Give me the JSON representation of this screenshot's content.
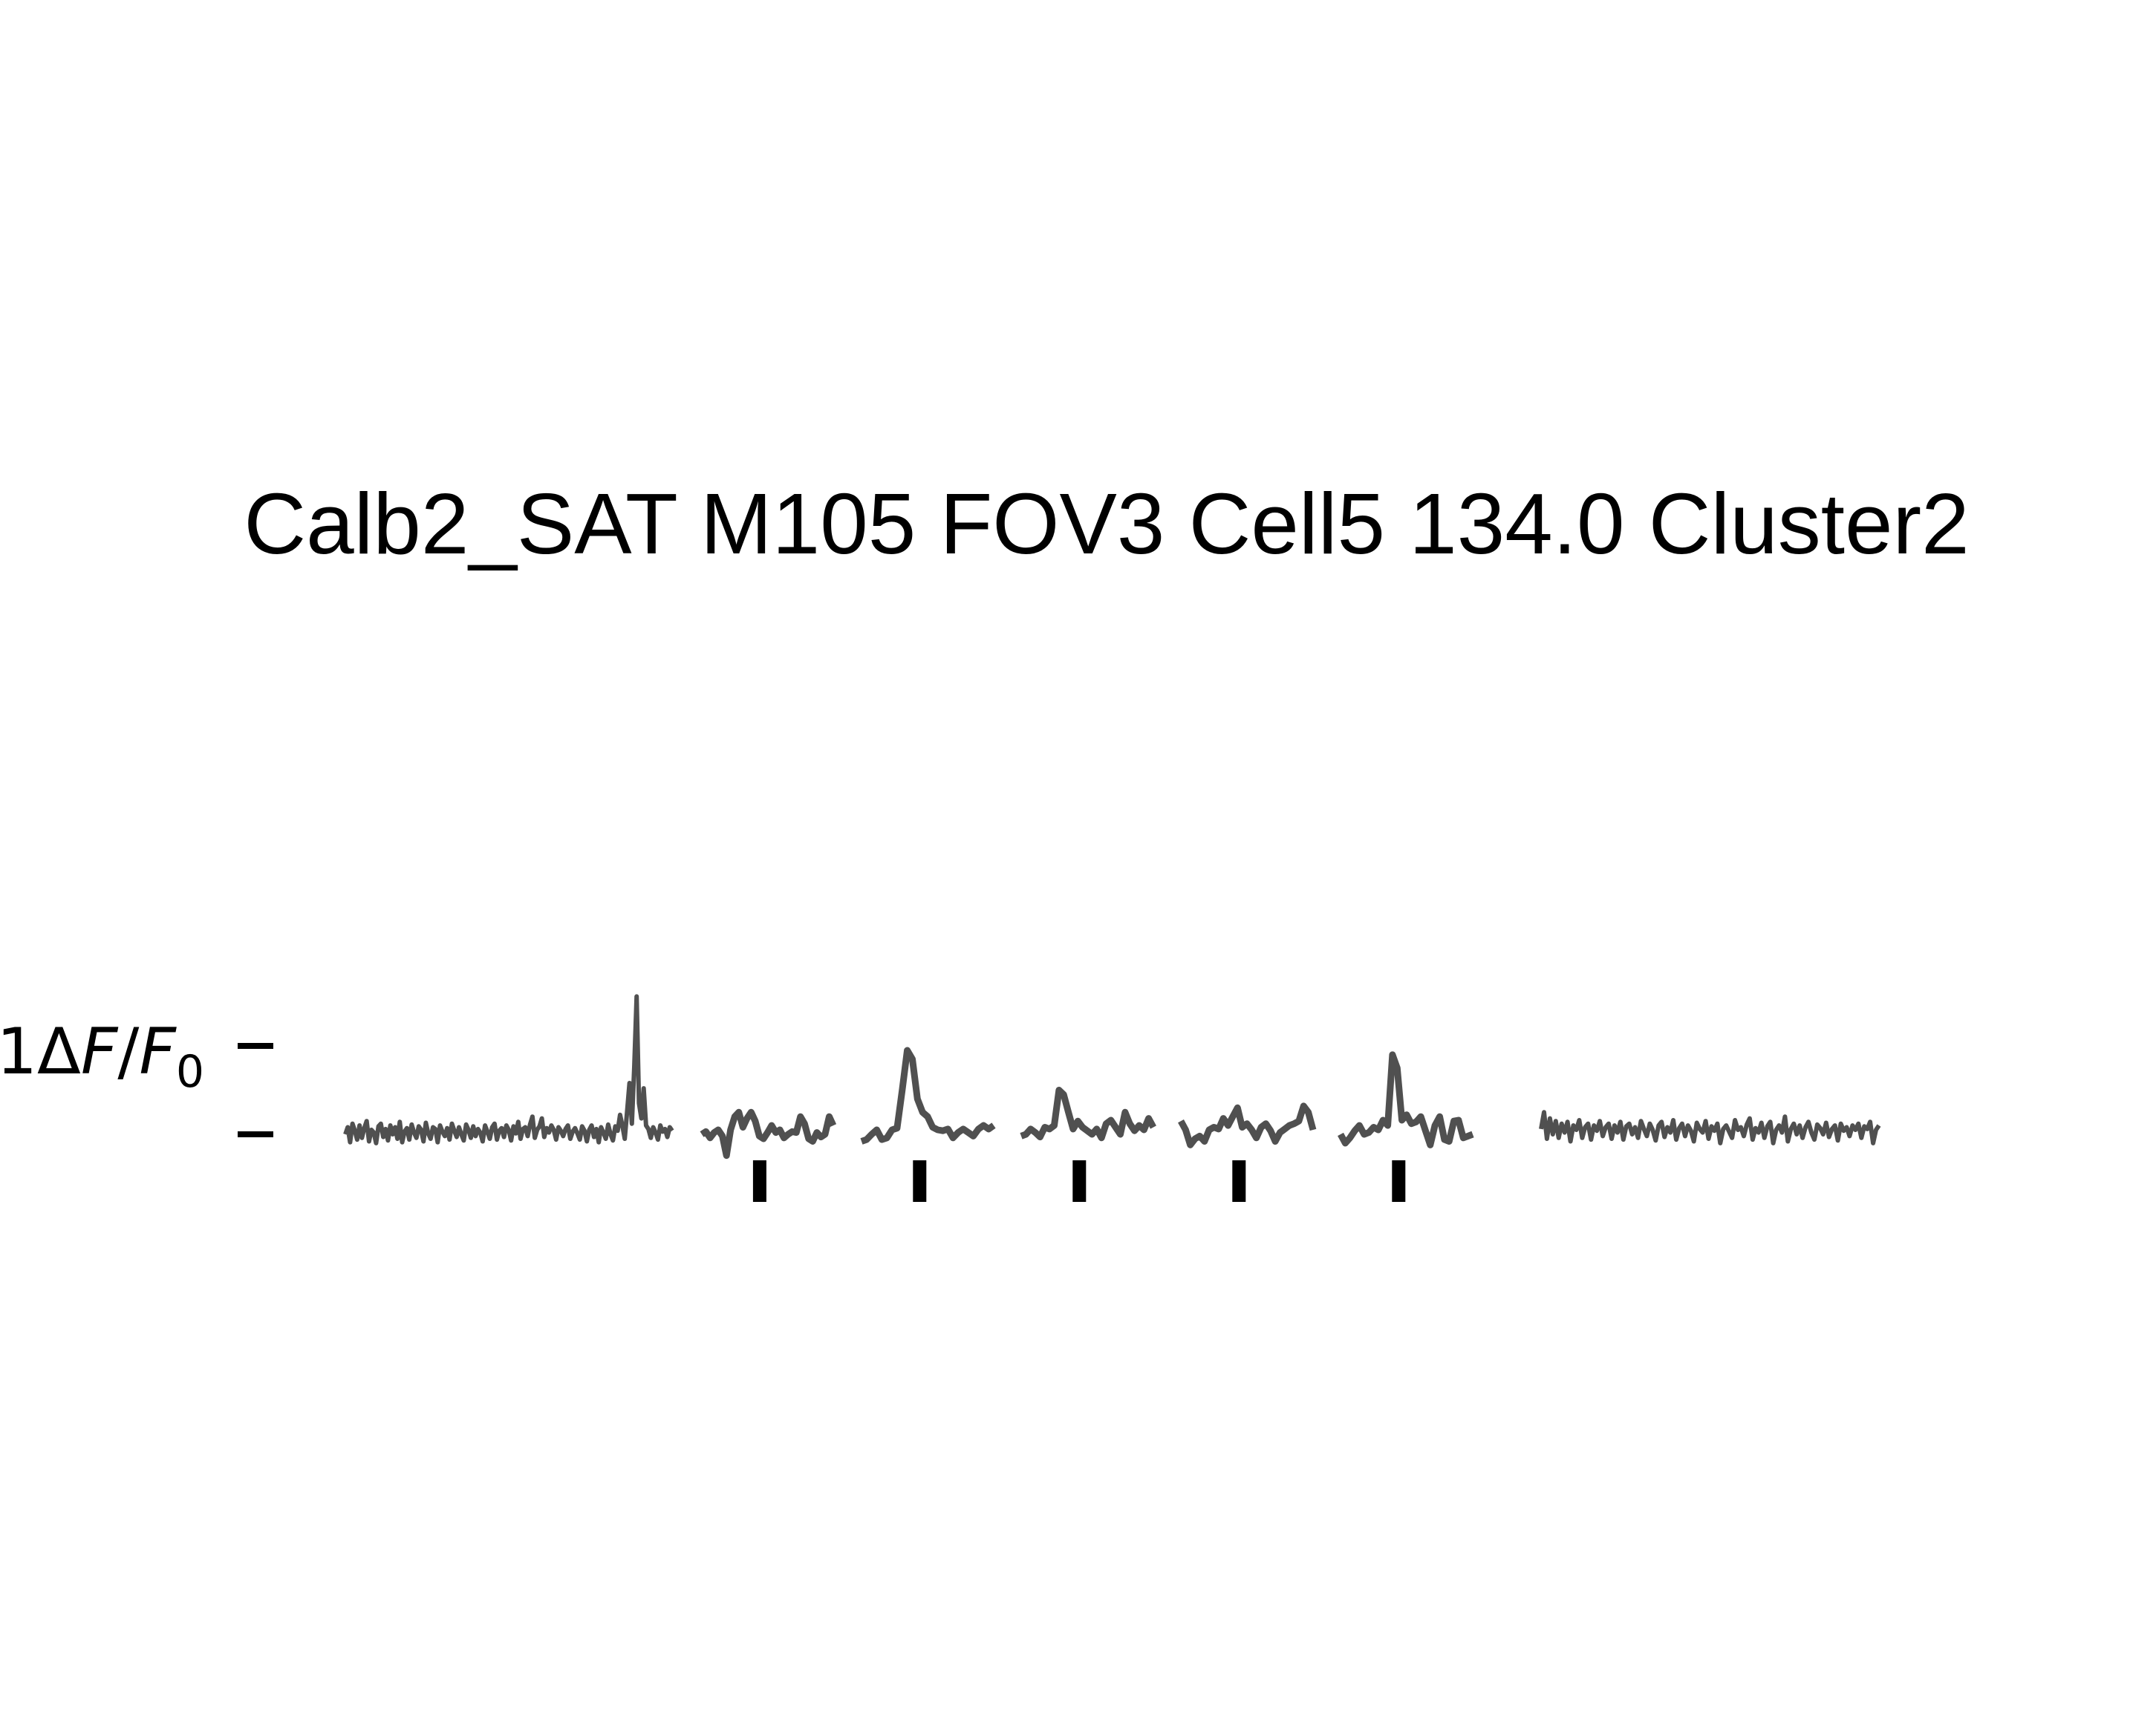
{
  "chart_data": {
    "type": "line",
    "title": "Calb2_SAT M105 FOV3 Cell5 134.0 Cluster2",
    "xlabel": "",
    "ylabel": "",
    "grid": false,
    "legend": "none",
    "trace_color": "#505050",
    "marker_color": "#000000",
    "scale_bar": {
      "label_prefix": "1",
      "label_delta": "Δ",
      "label_f": "F",
      "label_slash": "/",
      "label_f0": "F",
      "label_sub": "0",
      "value": 1
    },
    "segments": [
      {
        "name": "baseline-pre",
        "values": [
          0.0,
          0.08,
          -0.09,
          0.12,
          0.04,
          -0.06,
          0.1,
          -0.04,
          0.07,
          0.15,
          -0.08,
          0.05,
          0.02,
          -0.1,
          0.09,
          0.12,
          -0.03,
          0.06,
          -0.07,
          0.1,
          0.0,
          0.08,
          -0.05,
          0.14,
          -0.09,
          0.03,
          0.07,
          -0.06,
          0.11,
          0.02,
          -0.04,
          0.09,
          0.05,
          -0.08,
          0.13,
          0.01,
          -0.05,
          0.08,
          0.06,
          -0.09,
          0.1,
          0.03,
          -0.02,
          0.07,
          -0.06,
          0.12,
          0.04,
          -0.03,
          0.08,
          0.0,
          -0.07,
          0.11,
          0.05,
          -0.04,
          0.09,
          -0.02,
          0.06,
          0.02,
          -0.08,
          0.1,
          0.03,
          -0.05,
          0.08,
          0.12,
          -0.06,
          0.04,
          0.07,
          -0.03,
          0.1,
          0.05,
          -0.07,
          0.09,
          0.01,
          0.14,
          -0.05,
          0.06,
          0.08,
          -0.02,
          0.11,
          0.2,
          -0.04,
          0.05,
          0.09,
          0.18,
          -0.03,
          0.07,
          0.02,
          0.1,
          0.05,
          -0.06,
          0.08,
          0.04,
          -0.02,
          0.06,
          0.1,
          -0.05,
          0.03,
          0.07,
          0.01,
          -0.06,
          0.09,
          0.04,
          -0.08,
          0.05,
          0.1,
          -0.03,
          0.06,
          -0.09,
          0.08,
          0.02,
          -0.05,
          0.11,
          0.0,
          -0.07,
          0.09,
          0.04,
          0.22,
          0.1,
          -0.05,
          0.26,
          0.58,
          0.12,
          0.76,
          1.56,
          0.35,
          0.18,
          0.52,
          0.1,
          0.06,
          -0.04,
          0.08,
          0.02,
          -0.06,
          0.1,
          0.03,
          0.06,
          -0.03,
          0.08,
          0.04
        ]
      },
      {
        "name": "stim-1",
        "values": [
          0.0,
          0.03,
          -0.04,
          0.02,
          0.05,
          -0.02,
          -0.24,
          0.05,
          0.2,
          0.25,
          0.08,
          0.18,
          0.25,
          0.15,
          -0.02,
          -0.05,
          0.02,
          0.1,
          0.02,
          0.05,
          -0.04,
          0.0,
          0.03,
          0.02,
          0.2,
          0.12,
          -0.05,
          -0.08,
          0.02,
          -0.03,
          0.0,
          0.2,
          0.1
        ]
      },
      {
        "name": "stim-2",
        "values": [
          -0.08,
          -0.06,
          0.0,
          0.05,
          -0.06,
          -0.04,
          0.05,
          0.07,
          0.5,
          0.95,
          0.85,
          0.4,
          0.25,
          0.2,
          0.08,
          0.05,
          0.04,
          0.06,
          -0.04,
          0.02,
          0.06,
          0.02,
          -0.02,
          0.06,
          0.1,
          0.06,
          0.1
        ]
      },
      {
        "name": "stim-3",
        "values": [
          -0.02,
          0.0,
          0.06,
          0.02,
          -0.03,
          0.08,
          0.06,
          0.1,
          0.5,
          0.45,
          0.25,
          0.06,
          0.15,
          0.08,
          0.04,
          0.0,
          0.06,
          -0.04,
          0.12,
          0.16,
          0.08,
          0.0,
          0.25,
          0.12,
          0.04,
          0.1,
          0.05,
          0.18,
          0.08
        ]
      },
      {
        "name": "stim-4",
        "values": [
          0.15,
          0.05,
          -0.12,
          -0.05,
          -0.02,
          -0.08,
          0.05,
          0.08,
          0.06,
          0.18,
          0.1,
          0.2,
          0.3,
          0.08,
          0.12,
          0.05,
          -0.04,
          0.08,
          0.12,
          0.04,
          -0.08,
          0.02,
          0.06,
          0.1,
          0.12,
          0.15,
          0.32,
          0.25,
          0.05
        ]
      },
      {
        "name": "stim-5",
        "values": [
          0.0,
          -0.1,
          -0.04,
          0.04,
          0.1,
          0.0,
          0.02,
          0.08,
          0.05,
          0.16,
          0.1,
          0.9,
          0.75,
          0.16,
          0.22,
          0.12,
          0.14,
          0.2,
          0.04,
          -0.12,
          0.1,
          0.2,
          -0.06,
          -0.08,
          0.15,
          0.16,
          -0.04,
          -0.02,
          0.0
        ]
      },
      {
        "name": "baseline-post",
        "values": [
          0.06,
          0.25,
          -0.05,
          0.18,
          0.0,
          0.15,
          -0.04,
          0.12,
          0.02,
          0.14,
          -0.08,
          0.1,
          0.05,
          0.16,
          -0.04,
          0.08,
          0.12,
          -0.06,
          0.1,
          0.04,
          0.15,
          -0.02,
          0.08,
          0.12,
          -0.05,
          0.1,
          0.02,
          0.14,
          -0.06,
          0.09,
          0.12,
          0.0,
          0.08,
          -0.04,
          0.15,
          0.06,
          -0.02,
          0.12,
          0.05,
          -0.07,
          0.1,
          0.14,
          -0.03,
          0.08,
          0.02,
          0.16,
          -0.06,
          0.07,
          0.12,
          -0.02,
          0.1,
          0.04,
          -0.08,
          0.13,
          0.06,
          0.02,
          0.15,
          -0.05,
          0.09,
          0.04,
          0.12,
          -0.1,
          0.06,
          0.1,
          0.03,
          -0.04,
          0.16,
          0.05,
          0.08,
          -0.02,
          0.11,
          0.18,
          -0.06,
          0.07,
          0.02,
          0.13,
          -0.04,
          0.09,
          0.14,
          -0.1,
          0.05,
          0.1,
          0.02,
          0.2,
          -0.08,
          0.06,
          0.12,
          0.0,
          0.1,
          -0.04,
          0.08,
          0.14,
          0.02,
          -0.06,
          0.11,
          0.07,
          0.0,
          0.13,
          -0.03,
          0.06,
          0.1,
          -0.07,
          0.12,
          0.04,
          0.08,
          -0.02,
          0.1,
          0.05,
          0.12,
          -0.04,
          0.09,
          0.06,
          0.14,
          -0.1,
          0.05,
          0.1
        ]
      }
    ],
    "stimulus_markers": [
      "stim-1",
      "stim-2",
      "stim-3",
      "stim-4",
      "stim-5"
    ]
  }
}
